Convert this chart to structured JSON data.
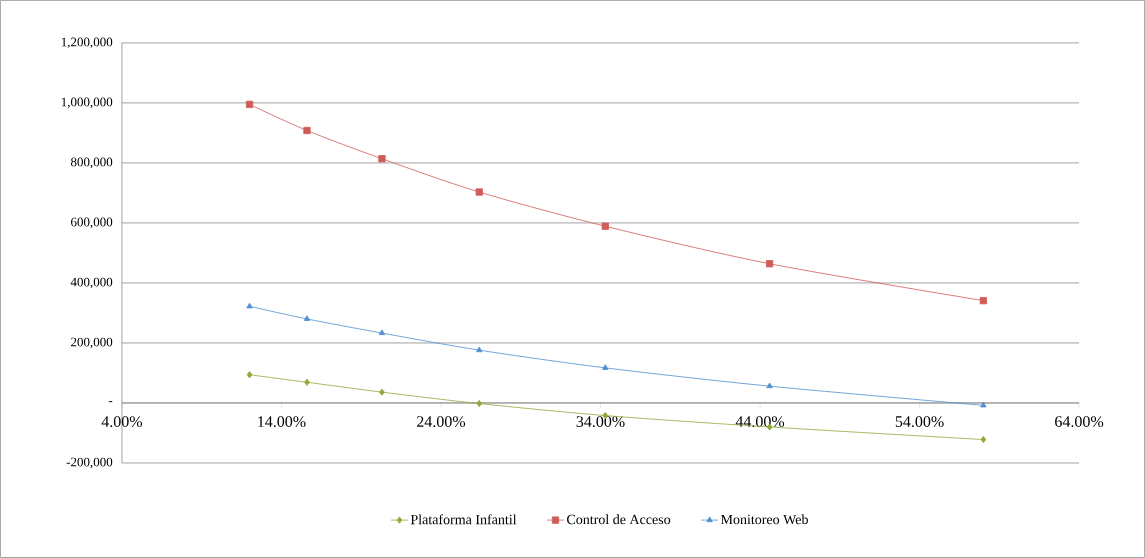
{
  "chart_data": {
    "type": "line",
    "xlim": [
      4,
      64
    ],
    "ylim": [
      -200000,
      1200000
    ],
    "xticks": [
      {
        "value": 4,
        "label": "4.00%"
      },
      {
        "value": 14,
        "label": "14.00%"
      },
      {
        "value": 24,
        "label": "24.00%"
      },
      {
        "value": 34,
        "label": "34.00%"
      },
      {
        "value": 44,
        "label": "44.00%"
      },
      {
        "value": 54,
        "label": "54.00%"
      },
      {
        "value": 64,
        "label": "64.00%"
      }
    ],
    "yticks": [
      {
        "value": -200000,
        "label": "-200,000"
      },
      {
        "value": 0,
        "label": "-"
      },
      {
        "value": 200000,
        "label": "200,000"
      },
      {
        "value": 400000,
        "label": "400,000"
      },
      {
        "value": 600000,
        "label": "600,000"
      },
      {
        "value": 800000,
        "label": "800,000"
      },
      {
        "value": 1000000,
        "label": "1,000,000"
      },
      {
        "value": 1200000,
        "label": "1,200,000"
      }
    ],
    "x": [
      12.0,
      15.6,
      20.3,
      26.4,
      34.3,
      44.6,
      58.0
    ],
    "grid": "y",
    "legend": "bottom",
    "series": [
      {
        "name": "Plataforma Infantil",
        "color": "#8faa3c",
        "marker": "diamond",
        "values": [
          94000,
          69000,
          36000,
          -2000,
          -42000,
          -80000,
          -122000
        ]
      },
      {
        "name": "Control de Acceso",
        "color": "#cf5c58",
        "marker": "square",
        "values": [
          995000,
          908000,
          814000,
          703000,
          589000,
          464000,
          341000
        ]
      },
      {
        "name": "Monitoreo Web",
        "color": "#4f8fd0",
        "marker": "triangle",
        "values": [
          322000,
          280000,
          233000,
          176000,
          117000,
          56000,
          -8000
        ]
      }
    ]
  }
}
